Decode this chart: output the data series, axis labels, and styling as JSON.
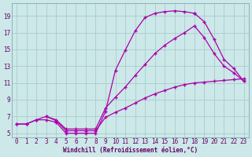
{
  "xlabel": "Windchill (Refroidissement éolien,°C)",
  "background_color": "#cce8e8",
  "grid_color": "#aacccc",
  "line_color": "#aa00aa",
  "xlim_min": -0.5,
  "xlim_max": 23.5,
  "ylim_min": 4.5,
  "ylim_max": 20.5,
  "xticks": [
    0,
    1,
    2,
    3,
    4,
    5,
    6,
    7,
    8,
    9,
    10,
    11,
    12,
    13,
    14,
    15,
    16,
    17,
    18,
    19,
    20,
    21,
    22,
    23
  ],
  "yticks": [
    5,
    7,
    9,
    11,
    13,
    15,
    17,
    19
  ],
  "curve1_x": [
    0,
    1,
    2,
    3,
    4,
    5,
    6,
    7,
    8,
    9,
    10,
    11,
    12,
    13,
    14,
    15,
    16,
    17,
    18
  ],
  "curve1_y": [
    6.1,
    6.1,
    6.6,
    6.6,
    6.3,
    5.0,
    5.0,
    5.0,
    5.0,
    7.6,
    12.5,
    14.9,
    17.2,
    18.8,
    19.3,
    19.5,
    19.6,
    19.5,
    19.3
  ],
  "curve2_x": [
    18,
    19,
    20,
    21,
    22,
    23
  ],
  "curve2_y": [
    19.3,
    18.3,
    16.2,
    13.8,
    12.7,
    11.2
  ],
  "curve3_x": [
    3,
    4,
    5,
    6,
    7,
    8,
    9,
    10,
    11,
    12,
    13,
    14,
    15,
    16,
    17,
    18,
    19,
    20,
    21,
    22,
    23
  ],
  "curve3_y": [
    7.0,
    6.6,
    5.5,
    5.5,
    5.5,
    5.5,
    8.0,
    9.3,
    10.5,
    11.9,
    13.2,
    14.5,
    15.5,
    16.3,
    17.0,
    17.8,
    16.4,
    14.5,
    13.0,
    12.2,
    11.2
  ],
  "curve4_x": [
    0,
    1,
    2,
    3,
    4,
    5,
    6,
    7,
    8,
    9,
    10,
    11,
    12,
    13,
    14,
    15,
    16,
    17,
    18,
    19,
    20,
    21,
    22,
    23
  ],
  "curve4_y": [
    6.1,
    6.1,
    6.6,
    7.0,
    6.5,
    5.3,
    5.3,
    5.3,
    5.3,
    6.9,
    7.5,
    8.0,
    8.6,
    9.2,
    9.7,
    10.1,
    10.5,
    10.8,
    11.0,
    11.1,
    11.2,
    11.3,
    11.4,
    11.5
  ]
}
